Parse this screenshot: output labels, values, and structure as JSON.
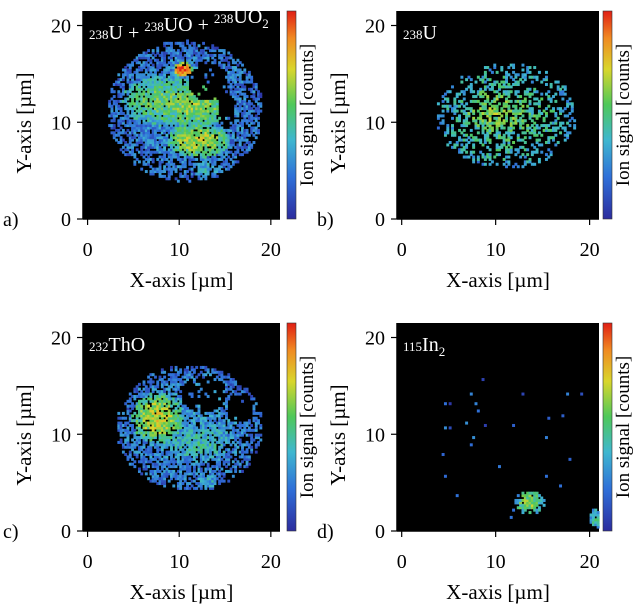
{
  "figure": {
    "axis_labels": {
      "x": "X-axis [µm]",
      "y": "Y-axis [µm]",
      "colorbar": "Ion signal [counts]"
    }
  },
  "chart_data": [
    {
      "type": "heatmap",
      "panel_label": "a)",
      "title_parts": [
        {
          "text": "238",
          "sup": true
        },
        {
          "text": "U + "
        },
        {
          "text": "238",
          "sup": true
        },
        {
          "text": "UO + "
        },
        {
          "text": "238",
          "sup": true
        },
        {
          "text": "UO"
        },
        {
          "text": "2",
          "sub": true
        }
      ],
      "xlabel": "X-axis [µm]",
      "ylabel": "Y-axis [µm]",
      "colorbar_label": "Ion signal [counts]",
      "xlim": [
        -0.5,
        21
      ],
      "ylim": [
        0,
        21.5
      ],
      "xticks": [
        0,
        10,
        20
      ],
      "yticks": [
        0,
        10,
        20
      ],
      "features": [
        {
          "cx": 10.5,
          "cy": 11.0,
          "rx": 8.5,
          "ry": 7.3,
          "intensity": 0.28,
          "density": 0.95
        },
        {
          "cx": 8.5,
          "cy": 12.0,
          "rx": 5.2,
          "ry": 2.6,
          "intensity": 0.55,
          "density": 0.95
        },
        {
          "cx": 11.5,
          "cy": 11.5,
          "rx": 4.2,
          "ry": 2.2,
          "intensity": 0.6,
          "density": 0.95
        },
        {
          "cx": 12.0,
          "cy": 8.0,
          "rx": 3.5,
          "ry": 1.8,
          "intensity": 0.65,
          "density": 0.95
        },
        {
          "cx": 10.3,
          "cy": 15.3,
          "rx": 1.0,
          "ry": 0.8,
          "intensity": 0.95,
          "density": 1.0
        },
        {
          "cx": 13.0,
          "cy": 5.0,
          "rx": 1.6,
          "ry": 1.0,
          "intensity": 0.35,
          "density": 0.9
        },
        {
          "cx": 15.5,
          "cy": 15.0,
          "rx": 1.5,
          "ry": 1.2,
          "intensity": 0.25,
          "density": 0.8
        }
      ],
      "voids": [
        {
          "cx": 13.0,
          "cy": 14.0,
          "rx": 2.2,
          "ry": 2.0
        },
        {
          "cx": 15.0,
          "cy": 11.0,
          "rx": 1.0,
          "ry": 2.0
        }
      ]
    },
    {
      "type": "heatmap",
      "panel_label": "b)",
      "title_parts": [
        {
          "text": "238",
          "sup": true
        },
        {
          "text": "U"
        }
      ],
      "xlabel": "X-axis [µm]",
      "ylabel": "Y-axis [µm]",
      "colorbar_label": "Ion signal [counts]",
      "xlim": [
        -0.5,
        21
      ],
      "ylim": [
        0,
        21.5
      ],
      "xticks": [
        0,
        10,
        20
      ],
      "yticks": [
        0,
        10,
        20
      ],
      "features": [
        {
          "cx": 11.0,
          "cy": 10.5,
          "rx": 7.5,
          "ry": 5.5,
          "intensity": 0.5,
          "density": 0.45
        },
        {
          "cx": 10.0,
          "cy": 11.0,
          "rx": 4.5,
          "ry": 3.0,
          "intensity": 0.6,
          "density": 0.55
        }
      ],
      "voids": []
    },
    {
      "type": "heatmap",
      "panel_label": "c)",
      "title_parts": [
        {
          "text": "232",
          "sup": true
        },
        {
          "text": "ThO"
        }
      ],
      "xlabel": "X-axis [µm]",
      "ylabel": "Y-axis [µm]",
      "colorbar_label": "Ion signal [counts]",
      "xlim": [
        -0.5,
        21
      ],
      "ylim": [
        0,
        21.5
      ],
      "xticks": [
        0,
        10,
        20
      ],
      "yticks": [
        0,
        10,
        20
      ],
      "features": [
        {
          "cx": 11.0,
          "cy": 10.5,
          "rx": 8.0,
          "ry": 6.5,
          "intensity": 0.3,
          "density": 0.85
        },
        {
          "cx": 7.5,
          "cy": 11.5,
          "rx": 2.8,
          "ry": 2.6,
          "intensity": 0.68,
          "density": 0.95
        },
        {
          "cx": 12.0,
          "cy": 9.0,
          "rx": 4.0,
          "ry": 2.0,
          "intensity": 0.42,
          "density": 0.9
        },
        {
          "cx": 13.0,
          "cy": 5.0,
          "rx": 1.5,
          "ry": 0.9,
          "intensity": 0.35,
          "density": 0.9
        }
      ],
      "voids": [
        {
          "cx": 12.5,
          "cy": 14.0,
          "rx": 2.5,
          "ry": 2.0
        },
        {
          "cx": 16.5,
          "cy": 12.5,
          "rx": 1.5,
          "ry": 1.5
        }
      ]
    },
    {
      "type": "heatmap",
      "panel_label": "d)",
      "title_parts": [
        {
          "text": "115",
          "sup": true
        },
        {
          "text": "In"
        },
        {
          "text": "2",
          "sub": true
        }
      ],
      "xlabel": "X-axis [µm]",
      "ylabel": "Y-axis [µm]",
      "colorbar_label": "Ion signal [counts]",
      "xlim": [
        -0.5,
        21
      ],
      "ylim": [
        0,
        21.5
      ],
      "xticks": [
        0,
        10,
        20
      ],
      "yticks": [
        0,
        10,
        20
      ],
      "features": [
        {
          "cx": 13.5,
          "cy": 2.8,
          "rx": 1.6,
          "ry": 1.2,
          "intensity": 0.6,
          "density": 1.0
        },
        {
          "cx": 20.6,
          "cy": 1.2,
          "rx": 0.7,
          "ry": 1.0,
          "intensity": 0.45,
          "density": 1.0
        },
        {
          "cx": 12.0,
          "cy": 9.0,
          "rx": 9.0,
          "ry": 9.0,
          "intensity": 0.2,
          "density": 0.012
        }
      ],
      "voids": []
    }
  ]
}
